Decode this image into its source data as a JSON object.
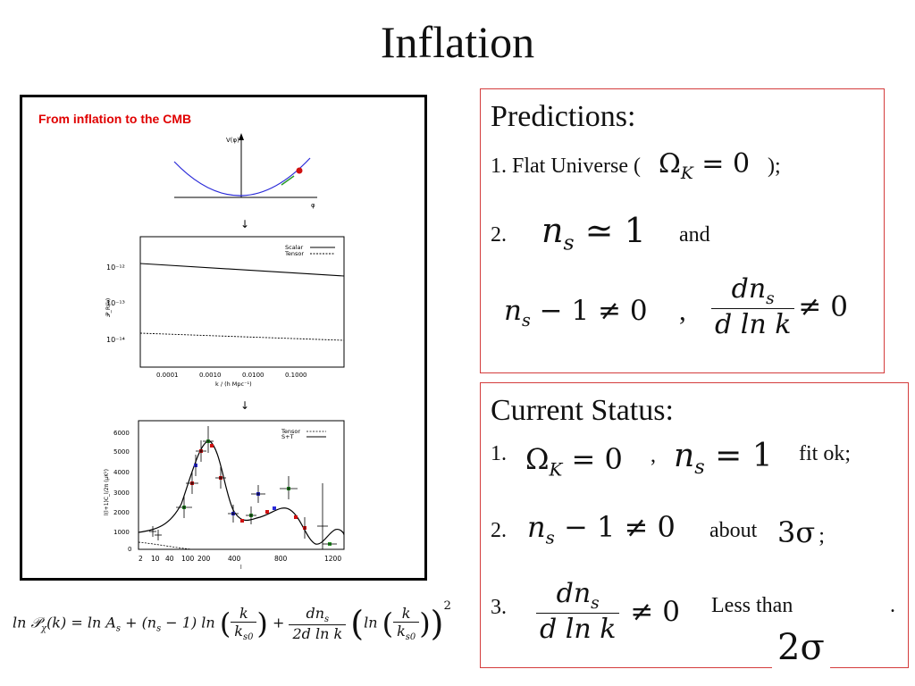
{
  "slide": {
    "title": "Inflation"
  },
  "figure": {
    "heading": "From inflation to the CMB",
    "potential": {
      "y_label": "V(φ)",
      "x_label": "φ"
    },
    "arrow": "↓",
    "spectrum_plot": {
      "legend": [
        "Scalar",
        "Tensor"
      ],
      "y_ticks": [
        "10⁻¹²",
        "10⁻¹³",
        "10⁻¹⁴"
      ],
      "x_ticks": [
        "0.0001",
        "0.0010",
        "0.0100",
        "0.1000"
      ],
      "x_label": "k / (h Mpc⁻¹)",
      "y_label": "𝒫_R(k)"
    },
    "cmb_plot": {
      "legend": [
        "Tensor",
        "S+T"
      ],
      "y_ticks": [
        "6000",
        "5000",
        "4000",
        "3000",
        "2000",
        "1000",
        "0"
      ],
      "x_ticks": [
        "2",
        "10",
        "40",
        "100",
        "200",
        "400",
        "800",
        "1200"
      ],
      "x_label": "l",
      "y_label": "l(l+1)C_l/2π (μK²)"
    }
  },
  "predictions": {
    "heading": "Predictions:",
    "item1_prefix": "1. Flat Universe (",
    "item1_math": "Ω",
    "item1_sub": "K",
    "item1_eq": " = 0",
    "item1_suffix": ");",
    "item2_prefix": "2.",
    "item2_math": "n",
    "item2_sub": "s",
    "item2_eq": " ≃ 1",
    "item2_suffix": "and",
    "item3_left": "n",
    "item3_left_sub": "s",
    "item3_left_rest": " − 1 ≠ 0",
    "item3_comma": ",",
    "item3_num": "dn",
    "item3_num_sub": "s",
    "item3_den": "d ln k",
    "item3_rest": "≠ 0"
  },
  "status": {
    "heading": "Current Status:",
    "line1_prefix": "1.",
    "line1_m1": "Ω",
    "line1_m1_sub": "K",
    "line1_m1_rest": " = 0",
    "line1_comma": ",",
    "line1_m2": "n",
    "line1_m2_sub": "s",
    "line1_m2_rest": " = 1",
    "line1_suffix": "fit ok;",
    "line2_prefix": "2.",
    "line2_m": "n",
    "line2_m_sub": "s",
    "line2_m_rest": " − 1 ≠ 0",
    "line2_mid": "about",
    "line2_sigma": "3σ",
    "line2_suffix": ";",
    "line3_prefix": "3.",
    "line3_num": "dn",
    "line3_num_sub": "s",
    "line3_den": "d ln k",
    "line3_rest": "≠ 0",
    "line3_mid": "Less than",
    "line3_dot": ".",
    "line3_sigma": "2σ"
  },
  "formula": {
    "lhs": "ln 𝒫",
    "lhs_sub": "χ",
    "lhs_arg": "(k) = ln A",
    "lhs_sub2": "s",
    "mid": " + (n",
    "mid_sub": "s",
    "mid_rest": " − 1) ln",
    "frac1_num": "k",
    "frac1_den": "k",
    "frac1_den_sub": "s0",
    "plus": " + ",
    "frac2_num": "dn",
    "frac2_num_sub": "s",
    "frac2_den": "2d ln k",
    "ln2": "ln",
    "frac3_num": "k",
    "frac3_den": "k",
    "frac3_den_sub": "s0",
    "power": "2"
  }
}
